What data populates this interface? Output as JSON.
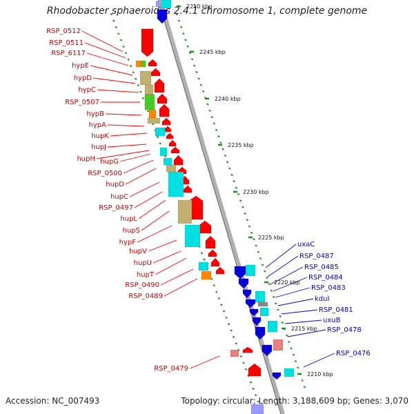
{
  "title": "Rhodobacter sphaeroides 2.4.1 chromosome 1, complete genome",
  "footer": {
    "accession": "Accession: NC_007493",
    "topology": "Topology: circular; Length: 3,188,609 bp; Genes: 3,070"
  },
  "colors": {
    "forward": "#ff0000",
    "reverse": "#0000dd",
    "forward_label": "#cc0000",
    "reverse_label": "#0000cc",
    "cyan": "#00e0e0",
    "khaki": "#c0b070",
    "green": "#44cc22",
    "orange": "#ff8800",
    "pink": "#e88080",
    "tick": "#228822",
    "backbone": "#999999"
  },
  "scale_labels": [
    "2250 kbp",
    "2245 kbp",
    "2240 kbp",
    "2235 kbp",
    "2230 kbp",
    "2225 kbp",
    "2220 kbp",
    "2215 kbp",
    "2210 kbp"
  ],
  "left_labels": [
    "RSP_0512",
    "RSP_0511",
    "RSP_6117",
    "hypE",
    "hypD",
    "hypC",
    "RSP_0507",
    "hypB",
    "hypA",
    "hupK",
    "hupJ",
    "hupH",
    "hupG",
    "RSP_0500",
    "hupD",
    "hupC",
    "RSP_0497",
    "hupL",
    "hupS",
    "hypF",
    "hupV",
    "hupU",
    "hupT",
    "RSP_0490",
    "RSP_0489",
    "RSP_0479"
  ],
  "right_labels": [
    "uxaC",
    "RSP_0487",
    "RSP_0485",
    "RSP_0484",
    "RSP_0483",
    "kduI",
    "RSP_0481",
    "uxuB",
    "RSP_0478",
    "RSP_0476"
  ]
}
